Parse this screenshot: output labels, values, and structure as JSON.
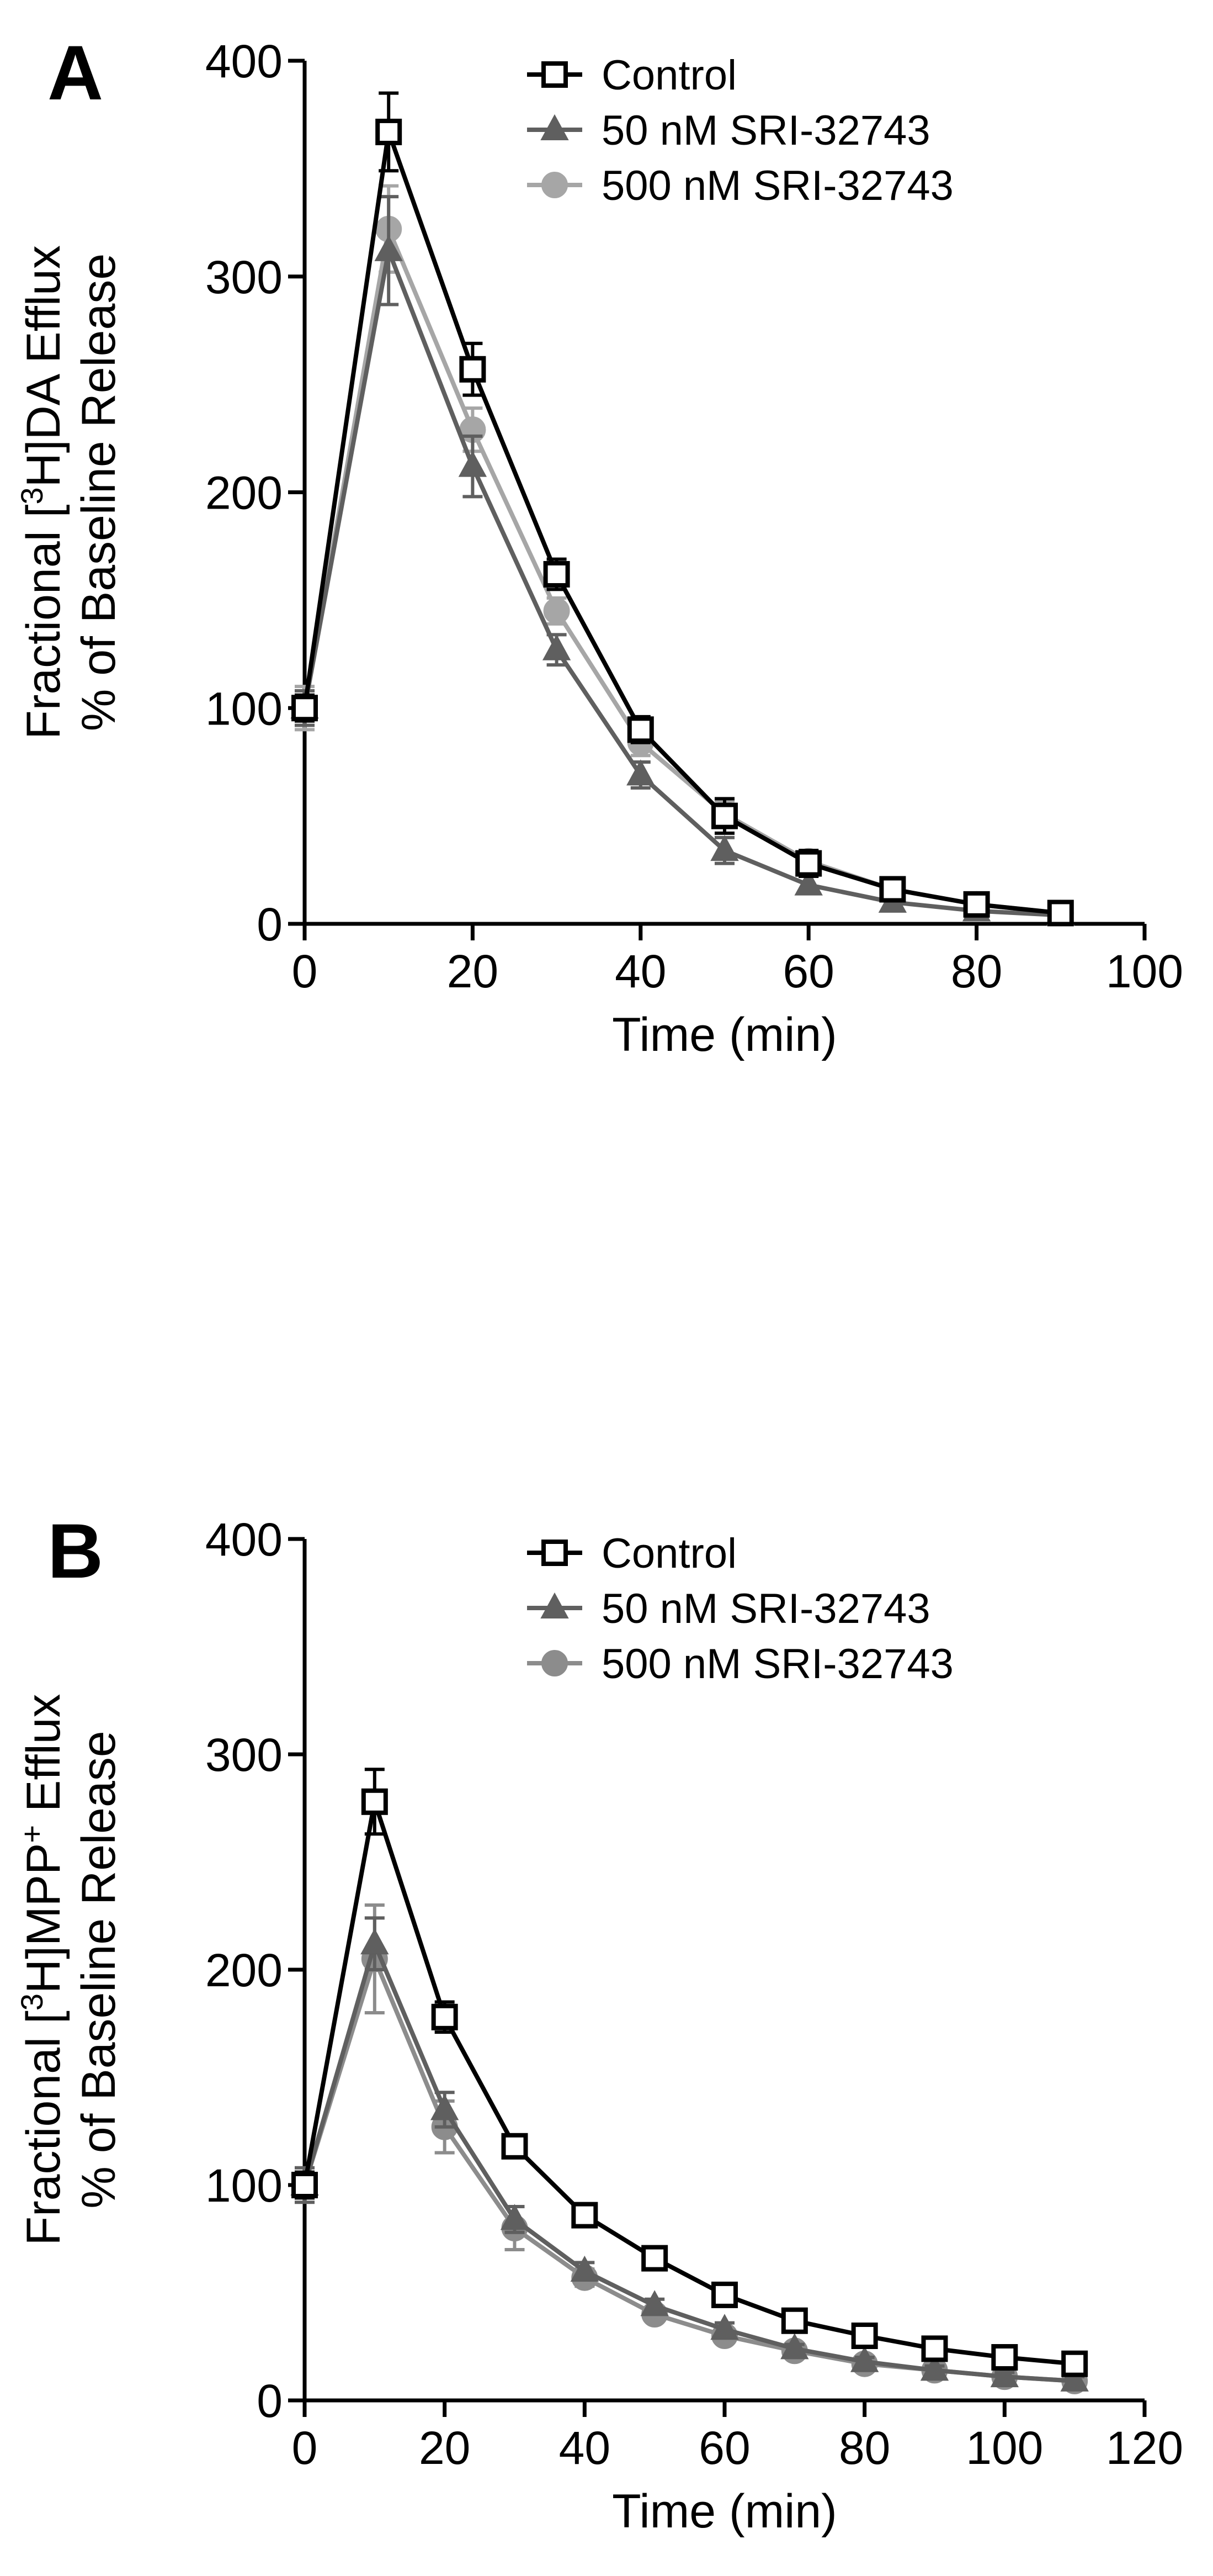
{
  "chart_data": [
    {
      "panel": "A",
      "type": "line",
      "ylabel_line1": [
        "Fractional [",
        "3",
        "H]DA Efflux"
      ],
      "ylabel_line2": "% of Baseline Release",
      "xlabel": "Time (min)",
      "xlim": [
        0,
        100
      ],
      "ylim": [
        0,
        400
      ],
      "xticks": [
        0,
        20,
        40,
        60,
        80,
        100
      ],
      "yticks": [
        0,
        100,
        200,
        300,
        400
      ],
      "grid": false,
      "legend_position": "top-right",
      "series": [
        {
          "name": "Control",
          "marker": "open-square",
          "color": "#000000",
          "x": [
            0,
            10,
            20,
            30,
            40,
            50,
            60,
            70,
            80,
            90
          ],
          "y": [
            100,
            367,
            257,
            162,
            90,
            50,
            28,
            16,
            9,
            5
          ],
          "err": [
            6,
            18,
            12,
            7,
            6,
            8,
            6,
            3,
            3,
            2
          ]
        },
        {
          "name": "50 nM SRI-32743",
          "marker": "filled-triangle",
          "color": "#5f5f5f",
          "x": [
            0,
            10,
            20,
            30,
            40,
            50,
            60,
            70,
            80,
            90
          ],
          "y": [
            100,
            312,
            212,
            127,
            69,
            34,
            18,
            10,
            6,
            4
          ],
          "err": [
            8,
            25,
            14,
            7,
            6,
            6,
            4,
            3,
            2,
            2
          ]
        },
        {
          "name": "500 nM SRI-32743",
          "marker": "filled-circle",
          "color": "#a6a6a6",
          "x": [
            0,
            10,
            20,
            30,
            40,
            50,
            60,
            70,
            80,
            90
          ],
          "y": [
            100,
            322,
            229,
            145,
            84,
            51,
            29,
            16,
            9,
            5
          ],
          "err": [
            10,
            20,
            10,
            6,
            6,
            6,
            5,
            3,
            2,
            2
          ]
        }
      ]
    },
    {
      "panel": "B",
      "type": "line",
      "ylabel_line1": [
        "Fractional [",
        "3",
        "H]MPP",
        "+",
        " Efflux"
      ],
      "ylabel_line2": "% of Baseline Release",
      "xlabel": "Time (min)",
      "xlim": [
        0,
        120
      ],
      "ylim": [
        0,
        400
      ],
      "xticks": [
        0,
        20,
        40,
        60,
        80,
        100,
        120
      ],
      "yticks": [
        0,
        100,
        200,
        300,
        400
      ],
      "grid": false,
      "legend_position": "top-right",
      "series": [
        {
          "name": "Control",
          "marker": "open-square",
          "color": "#000000",
          "x": [
            0,
            10,
            20,
            30,
            40,
            50,
            60,
            70,
            80,
            90,
            100,
            110
          ],
          "y": [
            100,
            278,
            178,
            118,
            86,
            66,
            49,
            37,
            30,
            24,
            20,
            17
          ],
          "err": [
            6,
            15,
            7,
            4,
            3,
            3,
            3,
            2,
            2,
            2,
            2,
            2
          ]
        },
        {
          "name": "50 nM SRI-32743",
          "marker": "filled-triangle",
          "color": "#5f5f5f",
          "x": [
            0,
            10,
            20,
            30,
            40,
            50,
            60,
            70,
            80,
            90,
            100,
            110
          ],
          "y": [
            100,
            212,
            135,
            84,
            60,
            44,
            33,
            24,
            18,
            14,
            11,
            9
          ],
          "err": [
            8,
            12,
            8,
            6,
            4,
            3,
            3,
            2,
            2,
            2,
            2,
            2
          ]
        },
        {
          "name": "500 nM SRI-32743",
          "marker": "filled-circle",
          "color": "#8c8c8c",
          "x": [
            0,
            10,
            20,
            30,
            40,
            50,
            60,
            70,
            80,
            90,
            100,
            110
          ],
          "y": [
            100,
            205,
            127,
            80,
            57,
            40,
            30,
            23,
            17,
            14,
            11,
            9
          ],
          "err": [
            6,
            25,
            12,
            10,
            4,
            3,
            3,
            2,
            2,
            2,
            2,
            2
          ]
        }
      ]
    }
  ]
}
